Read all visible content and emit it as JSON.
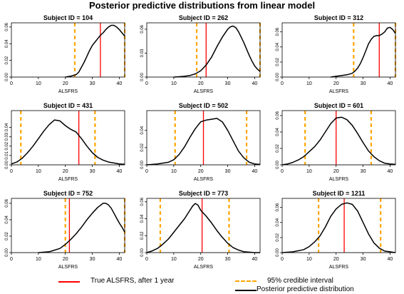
{
  "colors": {
    "true_value": "#ff0000",
    "credible_interval": "#ffa500",
    "density": "#000000",
    "baseline": "#bebebe"
  },
  "chart_data": {
    "type": "line",
    "title": "Posterior predictive distributions from linear model",
    "xlabel": "ALSFRS",
    "xlim": [
      0,
      42
    ],
    "xticks": [
      0,
      10,
      20,
      30,
      40
    ],
    "legend": {
      "placement": "bottom",
      "items": [
        {
          "key": "true_value",
          "label": "True ALSFRS, after 1 year",
          "style": "solid-red"
        },
        {
          "key": "credible_interval",
          "label": "95% credible interval",
          "style": "dashed-orange"
        },
        {
          "key": "density",
          "label": "Posterior predictive distribution",
          "style": "solid-black"
        }
      ]
    },
    "panels": [
      {
        "title": "Subject ID = 104",
        "ylim": [
          0,
          0.065
        ],
        "yticks": [
          0.0,
          0.02,
          0.04,
          0.06
        ],
        "ytick_labels": [
          "0.00",
          "0.02",
          "0.04",
          "0.06"
        ],
        "true_value": 33,
        "ci": [
          23.5,
          42
        ],
        "density": {
          "x": [
            20,
            22,
            24,
            25,
            26,
            27,
            28,
            29,
            30,
            31,
            32,
            33,
            34,
            35,
            36,
            37,
            38,
            39,
            40,
            41,
            42
          ],
          "y": [
            0,
            0.001,
            0.003,
            0.006,
            0.012,
            0.018,
            0.025,
            0.032,
            0.038,
            0.042,
            0.046,
            0.05,
            0.053,
            0.057,
            0.06,
            0.062,
            0.062,
            0.06,
            0.057,
            0.053,
            0.049
          ]
        }
      },
      {
        "title": "Subject ID = 262",
        "ylim": [
          0,
          0.068
        ],
        "yticks": [
          0.0,
          0.03,
          0.06
        ],
        "ytick_labels": [
          "0.00",
          "0.03",
          "0.06"
        ],
        "true_value": 22,
        "ci": [
          18.5,
          42
        ],
        "density": {
          "x": [
            10,
            14,
            16,
            18,
            20,
            22,
            24,
            26,
            28,
            30,
            31,
            32,
            33,
            34,
            35,
            36,
            37,
            38,
            39,
            40,
            41,
            42
          ],
          "y": [
            0,
            0.001,
            0.002,
            0.004,
            0.008,
            0.015,
            0.025,
            0.038,
            0.05,
            0.06,
            0.063,
            0.064,
            0.062,
            0.057,
            0.05,
            0.043,
            0.035,
            0.027,
            0.02,
            0.014,
            0.01,
            0.007
          ]
        }
      },
      {
        "title": "Subject ID = 312",
        "ylim": [
          0,
          0.072
        ],
        "yticks": [
          0.0,
          0.02,
          0.04,
          0.06
        ],
        "ytick_labels": [
          "0.00",
          "0.02",
          "0.04",
          "0.06"
        ],
        "true_value": 36,
        "ci": [
          26.5,
          42
        ],
        "density": {
          "x": [
            18,
            20,
            22,
            24,
            26,
            27,
            28,
            29,
            30,
            31,
            32,
            33,
            34,
            35,
            36,
            37,
            38,
            39,
            40,
            41,
            42
          ],
          "y": [
            0,
            0.001,
            0.002,
            0.003,
            0.005,
            0.008,
            0.012,
            0.018,
            0.026,
            0.035,
            0.044,
            0.05,
            0.054,
            0.055,
            0.055,
            0.057,
            0.06,
            0.065,
            0.066,
            0.063,
            0.058
          ]
        }
      },
      {
        "title": "Subject ID = 431",
        "ylim": [
          0,
          0.058
        ],
        "yticks": [
          0.0,
          0.01,
          0.02,
          0.03,
          0.04
        ],
        "ytick_labels": [
          "0.00",
          "0.01",
          "0.02",
          "0.03",
          "0.04"
        ],
        "true_value": 25,
        "ci": [
          3.5,
          31
        ],
        "density": {
          "x": [
            0,
            2,
            4,
            6,
            8,
            10,
            12,
            14,
            16,
            18,
            20,
            22,
            24,
            26,
            28,
            30,
            32,
            34,
            36,
            38,
            40,
            42
          ],
          "y": [
            0.001,
            0.003,
            0.007,
            0.013,
            0.02,
            0.028,
            0.036,
            0.043,
            0.048,
            0.047,
            0.042,
            0.038,
            0.035,
            0.028,
            0.02,
            0.013,
            0.008,
            0.005,
            0.003,
            0.002,
            0.001,
            0.0005
          ]
        }
      },
      {
        "title": "Subject ID = 502",
        "ylim": [
          0,
          0.063
        ],
        "yticks": [
          0.0,
          0.02,
          0.04
        ],
        "ytick_labels": [
          "0.00",
          "0.02",
          "0.04"
        ],
        "true_value": 21,
        "ci": [
          10.5,
          37
        ],
        "density": {
          "x": [
            0,
            4,
            8,
            10,
            12,
            14,
            16,
            18,
            20,
            22,
            24,
            26,
            28,
            30,
            32,
            34,
            36,
            38,
            40,
            42
          ],
          "y": [
            0,
            0.001,
            0.003,
            0.006,
            0.012,
            0.021,
            0.032,
            0.042,
            0.05,
            0.052,
            0.053,
            0.054,
            0.05,
            0.04,
            0.028,
            0.016,
            0.008,
            0.003,
            0.001,
            0.0005
          ]
        }
      },
      {
        "title": "Subject ID = 601",
        "ylim": [
          0,
          0.066
        ],
        "yticks": [
          0.0,
          0.02,
          0.04,
          0.06
        ],
        "ytick_labels": [
          "0.00",
          "0.02",
          "0.04",
          "0.06"
        ],
        "true_value": 20,
        "ci": [
          8.5,
          33
        ],
        "density": {
          "x": [
            0,
            2,
            4,
            6,
            8,
            10,
            12,
            14,
            16,
            18,
            20,
            22,
            24,
            26,
            28,
            30,
            32,
            34,
            36,
            38,
            40,
            42
          ],
          "y": [
            0,
            0.001,
            0.003,
            0.006,
            0.01,
            0.016,
            0.022,
            0.03,
            0.04,
            0.05,
            0.057,
            0.058,
            0.055,
            0.048,
            0.038,
            0.027,
            0.017,
            0.01,
            0.005,
            0.002,
            0.001,
            0.0005
          ]
        }
      },
      {
        "title": "Subject ID = 752",
        "ylim": [
          0,
          0.066
        ],
        "yticks": [
          0.0,
          0.02,
          0.04,
          0.06
        ],
        "ytick_labels": [
          "0.00",
          "0.02",
          "0.04",
          "0.06"
        ],
        "true_value": 21.5,
        "ci": [
          20,
          42
        ],
        "density": {
          "x": [
            10,
            14,
            16,
            18,
            20,
            22,
            24,
            26,
            28,
            30,
            32,
            34,
            35,
            36,
            37,
            38,
            39,
            40,
            41,
            42
          ],
          "y": [
            0,
            0.001,
            0.003,
            0.005,
            0.01,
            0.016,
            0.023,
            0.031,
            0.04,
            0.048,
            0.055,
            0.06,
            0.06,
            0.058,
            0.054,
            0.048,
            0.042,
            0.036,
            0.031,
            0.025
          ]
        }
      },
      {
        "title": "Subject ID = 773",
        "ylim": [
          0,
          0.064
        ],
        "yticks": [
          0.0,
          0.02,
          0.04,
          0.06
        ],
        "ytick_labels": [
          "0.00",
          "0.02",
          "0.04",
          "0.06"
        ],
        "true_value": 20.5,
        "ci": [
          5,
          30.5
        ],
        "density": {
          "x": [
            0,
            2,
            4,
            6,
            8,
            10,
            12,
            14,
            16,
            17,
            18,
            19,
            20,
            22,
            24,
            26,
            28,
            30,
            32,
            34,
            36,
            38,
            40,
            42
          ],
          "y": [
            0,
            0.002,
            0.005,
            0.01,
            0.016,
            0.024,
            0.032,
            0.04,
            0.05,
            0.055,
            0.058,
            0.056,
            0.05,
            0.043,
            0.035,
            0.026,
            0.018,
            0.011,
            0.006,
            0.003,
            0.001,
            0.0005,
            0,
            0
          ]
        }
      },
      {
        "title": "Subject ID = 1211",
        "ylim": [
          0,
          0.072
        ],
        "yticks": [
          0.0,
          0.02,
          0.04,
          0.06
        ],
        "ytick_labels": [
          "0.00",
          "0.02",
          "0.04",
          "0.06"
        ],
        "true_value": 23,
        "ci": [
          13.5,
          36.5
        ],
        "density": {
          "x": [
            0,
            4,
            8,
            10,
            12,
            14,
            16,
            18,
            20,
            22,
            24,
            26,
            28,
            30,
            32,
            34,
            36,
            38,
            40,
            42
          ],
          "y": [
            0,
            0.001,
            0.004,
            0.008,
            0.014,
            0.022,
            0.034,
            0.048,
            0.058,
            0.064,
            0.066,
            0.064,
            0.055,
            0.04,
            0.025,
            0.013,
            0.006,
            0.002,
            0.001,
            0
          ]
        }
      }
    ]
  }
}
